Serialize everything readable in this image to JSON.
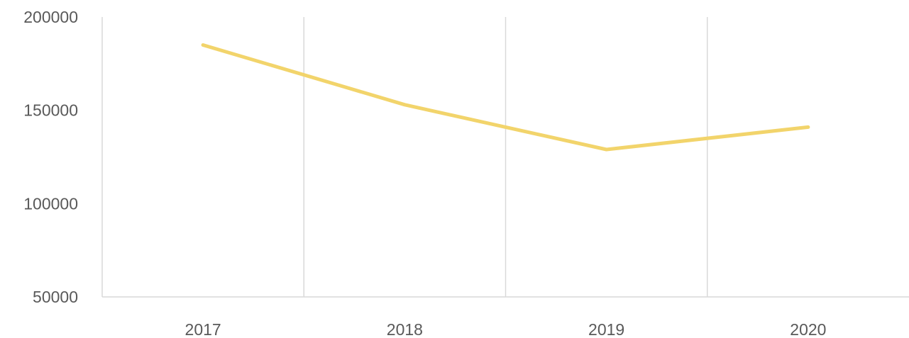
{
  "chart_data": {
    "type": "line",
    "title": "",
    "xlabel": "",
    "ylabel": "",
    "categories": [
      "2017",
      "2018",
      "2019",
      "2020"
    ],
    "series": [
      {
        "values": [
          185000,
          153000,
          129000,
          141000
        ],
        "color": "#f2d46b"
      }
    ],
    "ylim": [
      50000,
      200000
    ],
    "yticks": [
      50000,
      100000,
      150000,
      200000
    ],
    "ytick_labels": [
      "50000",
      "100000",
      "150000",
      "200000"
    ],
    "grid": "vertical category separators",
    "legend": "none",
    "colors": {
      "gridline": "#d9d9d9",
      "tick_text": "#595959",
      "background": "#ffffff"
    }
  }
}
